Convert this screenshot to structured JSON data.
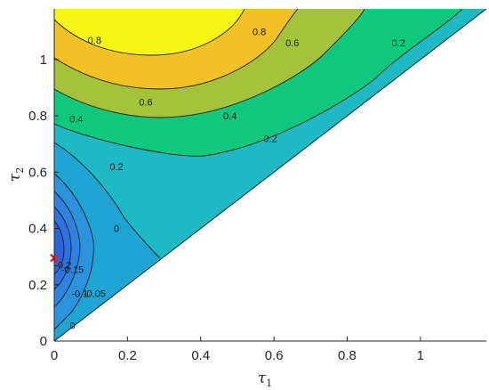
{
  "chart_data": {
    "type": "contour",
    "xlabel": "τ",
    "xlabel_sub": "1",
    "ylabel": "τ",
    "ylabel_sub": "2",
    "xlim": [
      0,
      1.18
    ],
    "ylim": [
      0,
      1.18
    ],
    "xticks": [
      0,
      0.2,
      0.4,
      0.6,
      0.8,
      1
    ],
    "yticks": [
      0,
      0.2,
      0.4,
      0.6,
      0.8,
      1
    ],
    "region": "tau2 >= tau1",
    "levels": [
      -0.2,
      -0.15,
      -0.1,
      -0.05,
      0,
      0.2,
      0.4,
      0.6,
      0.8
    ],
    "level_labels": [
      {
        "text": "0.8",
        "x": 0.11,
        "y": 1.07
      },
      {
        "text": "0.8",
        "x": 0.56,
        "y": 1.1
      },
      {
        "text": "0.6",
        "x": 0.25,
        "y": 0.85
      },
      {
        "text": "0.6",
        "x": 0.65,
        "y": 1.06
      },
      {
        "text": "0.4",
        "x": 0.06,
        "y": 0.79
      },
      {
        "text": "0.4",
        "x": 0.48,
        "y": 0.8
      },
      {
        "text": "0.2",
        "x": 0.17,
        "y": 0.62
      },
      {
        "text": "0.2",
        "x": 0.59,
        "y": 0.72
      },
      {
        "text": "0.2",
        "x": 0.94,
        "y": 1.06
      },
      {
        "text": "0",
        "x": 0.17,
        "y": 0.4
      },
      {
        "text": "-0.2",
        "x": 0.024,
        "y": 0.27
      },
      {
        "text": "-0.15",
        "x": 0.05,
        "y": 0.255
      },
      {
        "text": "-0.1",
        "x": 0.07,
        "y": 0.17
      },
      {
        "text": "-0.05",
        "x": 0.11,
        "y": 0.17
      },
      {
        "text": "0",
        "x": 0.05,
        "y": 0.055
      }
    ],
    "marker": {
      "x": 0,
      "y": 0.295,
      "symbol": "x",
      "color": "#e0202c"
    },
    "colors": {
      "fill_0_to_0.2": "#1db9c4",
      "fill_0.2_to_0.4": "#0ec97d",
      "fill_0.4_to_0.6": "#a4c23a",
      "fill_0.6_to_0.8": "#f2c124",
      "fill_above_0.8": "#f6f614",
      "fill_-0.05_to_0": "#1ea5d3",
      "fill_-0.1_to_-0.05": "#2a93dc",
      "fill_-0.15_to_-0.1": "#2f83e0",
      "fill_-0.2_to_-0.15": "#2d72de",
      "fill_below_-0.2": "#2a64da"
    }
  }
}
